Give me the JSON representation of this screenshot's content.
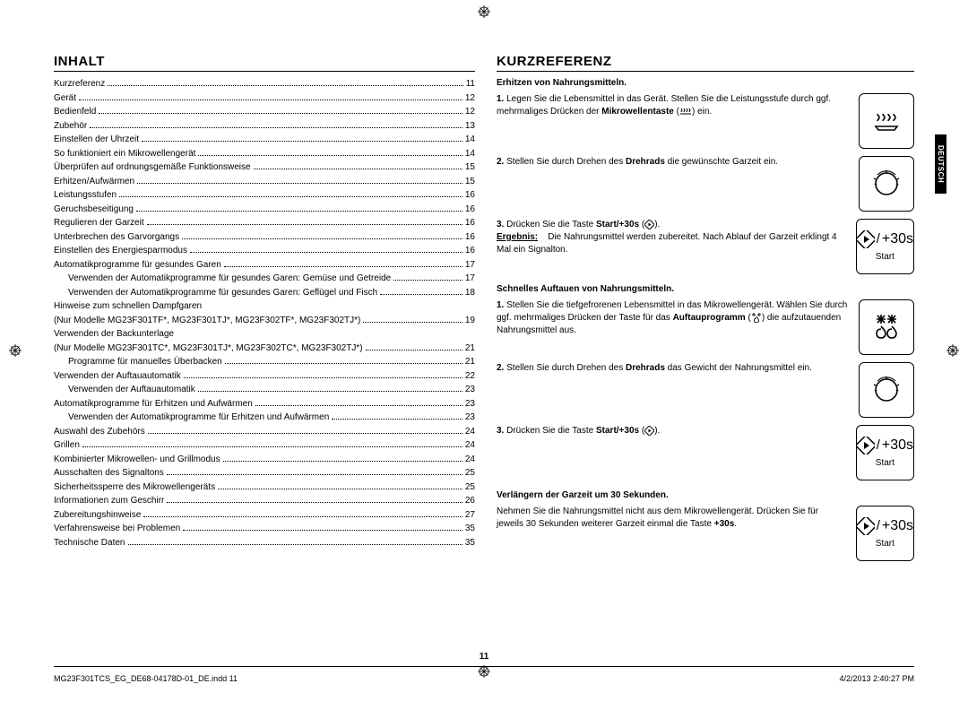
{
  "language_tab": "DEUTSCH",
  "page_number": "11",
  "footer_left": "MG23F301TCS_EG_DE68-04178D-01_DE.indd   11",
  "footer_right": "4/2/2013   2:40:27 PM",
  "left": {
    "heading": "Inhalt",
    "items": [
      {
        "label": "Kurzreferenz",
        "page": "11",
        "indent": 0
      },
      {
        "label": "Gerät",
        "page": "12",
        "indent": 0
      },
      {
        "label": "Bedienfeld",
        "page": "12",
        "indent": 0
      },
      {
        "label": "Zubehör",
        "page": "13",
        "indent": 0
      },
      {
        "label": "Einstellen der Uhrzeit",
        "page": "14",
        "indent": 0
      },
      {
        "label": "So funktioniert ein Mikrowellengerät",
        "page": "14",
        "indent": 0
      },
      {
        "label": "Überprüfen auf ordnungsgemäße Funktionsweise",
        "page": "15",
        "indent": 0
      },
      {
        "label": "Erhitzen/Aufwärmen",
        "page": "15",
        "indent": 0
      },
      {
        "label": "Leistungsstufen",
        "page": "16",
        "indent": 0
      },
      {
        "label": "Geruchsbeseitigung",
        "page": "16",
        "indent": 0
      },
      {
        "label": "Regulieren der Garzeit",
        "page": "16",
        "indent": 0
      },
      {
        "label": "Unterbrechen des Garvorgangs",
        "page": "16",
        "indent": 0
      },
      {
        "label": "Einstellen des Energiesparmodus",
        "page": "16",
        "indent": 0
      },
      {
        "label": "Automatikprogramme für gesundes Garen",
        "page": "17",
        "indent": 0
      },
      {
        "label": "Verwenden der Automatikprogramme für gesundes Garen: Gemüse und Getreide",
        "page": "17",
        "indent": 1
      },
      {
        "label": "Verwenden der Automatikprogramme für gesundes Garen: Geflügel und Fisch",
        "page": "18",
        "indent": 1
      },
      {
        "label": "Hinweise zum schnellen Dampfgaren",
        "page": "",
        "indent": 0,
        "noleader": true
      },
      {
        "label": "(Nur Modelle MG23F301TF*, MG23F301TJ*, MG23F302TF*, MG23F302TJ*)",
        "page": "19",
        "indent": 0
      },
      {
        "label": "Verwenden der Backunterlage",
        "page": "",
        "indent": 0,
        "noleader": true
      },
      {
        "label": "(Nur Modelle MG23F301TC*, MG23F301TJ*, MG23F302TC*, MG23F302TJ*)",
        "page": "21",
        "indent": 0
      },
      {
        "label": "Programme für manuelles Überbacken",
        "page": "21",
        "indent": 1
      },
      {
        "label": "Verwenden der Auftauautomatik",
        "page": "22",
        "indent": 0
      },
      {
        "label": "Verwenden der Auftauautomatik",
        "page": "23",
        "indent": 1
      },
      {
        "label": "Automatikprogramme für Erhitzen und Aufwärmen",
        "page": "23",
        "indent": 0
      },
      {
        "label": "Verwenden der Automatikprogramme für Erhitzen und Aufwärmen",
        "page": "23",
        "indent": 1
      },
      {
        "label": "Auswahl des Zubehörs",
        "page": "24",
        "indent": 0
      },
      {
        "label": "Grillen",
        "page": "24",
        "indent": 0
      },
      {
        "label": "Kombinierter Mikrowellen- und Grillmodus",
        "page": "24",
        "indent": 0
      },
      {
        "label": "Ausschalten des Signaltons",
        "page": "25",
        "indent": 0
      },
      {
        "label": "Sicherheitssperre des Mikrowellengeräts",
        "page": "25",
        "indent": 0
      },
      {
        "label": "Informationen zum Geschirr",
        "page": "26",
        "indent": 0
      },
      {
        "label": "Zubereitungshinweise",
        "page": "27",
        "indent": 0
      },
      {
        "label": "Verfahrensweise bei Problemen",
        "page": "35",
        "indent": 0
      },
      {
        "label": "Technische Daten",
        "page": "35",
        "indent": 0
      }
    ]
  },
  "right": {
    "heading": "Kurzreferenz",
    "sections": [
      {
        "title": "Erhitzen von Nahrungsmitteln.",
        "steps": [
          {
            "num": "1.",
            "html": "Legen Sie die Lebensmittel in das Gerät. Stellen Sie die Leistungsstufe durch ggf. mehrmaliges Drücken der <b>Mikrowellentaste</b> (§wave§) ein.",
            "icon": "microwave"
          },
          {
            "num": "2.",
            "html": "Stellen Sie durch Drehen des <b>Drehrads</b> die gewünschte Garzeit ein.",
            "icon": "dial"
          },
          {
            "num": "3.",
            "html": "Drücken Sie die Taste <b>Start/+30s</b> (§diamond§).<br><b><u>Ergebnis:</u></b>&nbsp;&nbsp;&nbsp;&nbsp;Die Nahrungsmittel werden zubereitet. Nach Ablauf der Garzeit erklingt 4 Mal ein Signalton.",
            "icon": "start"
          }
        ]
      },
      {
        "title": "Schnelles Auftauen von Nahrungsmitteln.",
        "steps": [
          {
            "num": "1.",
            "html": "Stellen Sie die tiefgefrorenen Lebensmittel in das Mikrowellengerät. Wählen Sie durch ggf. mehrmaliges Drücken der Taste für das <b>Auftauprogramm</b> (§defrost§) die aufzutauenden Nahrungsmittel aus.",
            "icon": "defrost"
          },
          {
            "num": "2.",
            "html": "Stellen Sie durch Drehen des <b>Drehrads</b> das Gewicht der Nahrungsmittel ein.",
            "icon": "dial"
          },
          {
            "num": "3.",
            "html": "Drücken Sie die Taste <b>Start/+30s</b> (§diamond§).",
            "icon": "start"
          }
        ]
      },
      {
        "title": "Verlängern der Garzeit um 30 Sekunden.",
        "steps": [
          {
            "num": "",
            "html": "Nehmen Sie die Nahrungsmittel nicht aus dem Mikrowellengerät. Drücken Sie für jeweils 30 Sekunden weiterer Garzeit einmal die Taste <b>+30s</b>.",
            "icon": "start"
          }
        ]
      }
    ],
    "start_label": "Start",
    "plus30": "+30s"
  }
}
